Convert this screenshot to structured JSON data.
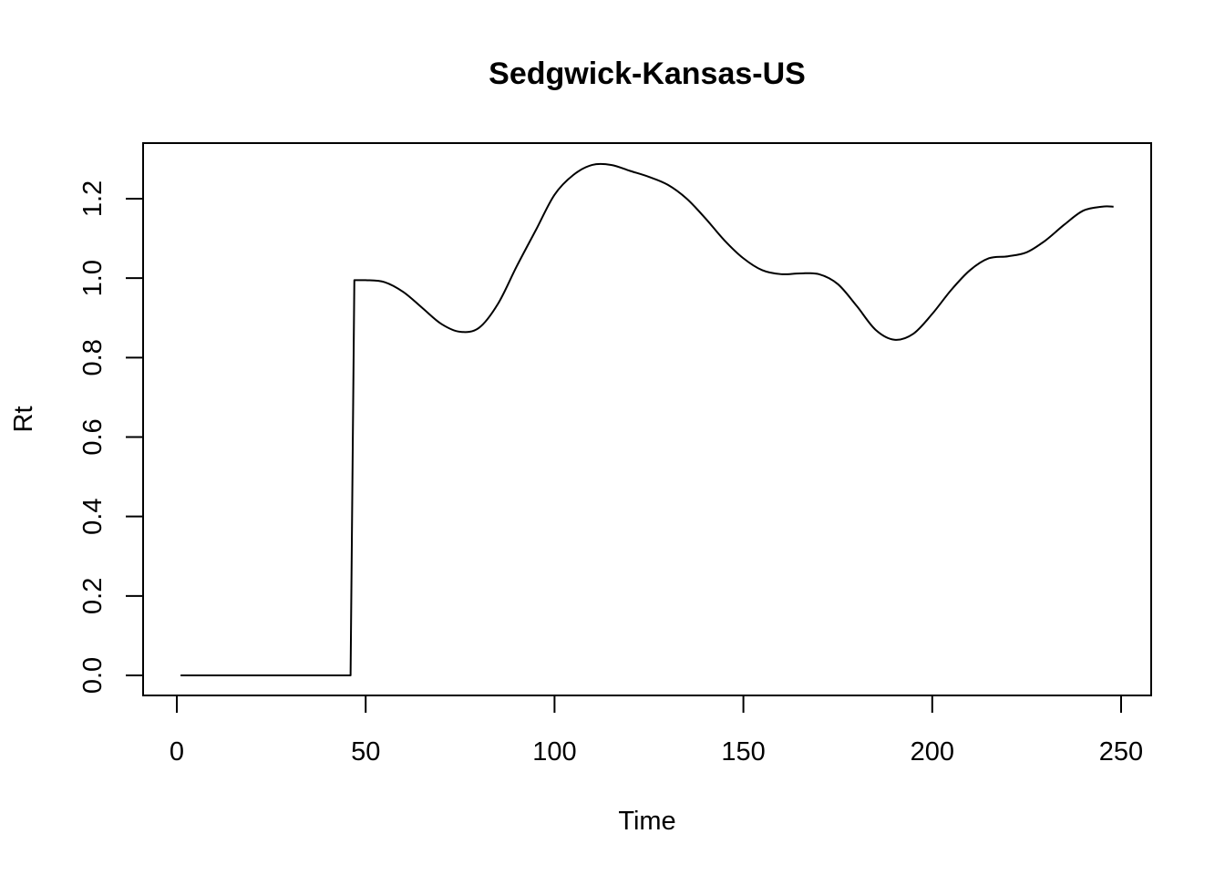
{
  "chart_data": {
    "type": "line",
    "title": "Sedgwick-Kansas-US",
    "xlabel": "Time",
    "ylabel": "Rt",
    "xlim": [
      0,
      250
    ],
    "ylim": [
      0,
      1.2
    ],
    "x_ticks": [
      "0",
      "50",
      "100",
      "150",
      "200",
      "250"
    ],
    "y_ticks": [
      "0.0",
      "0.2",
      "0.4",
      "0.6",
      "0.8",
      "1.0",
      "1.2"
    ],
    "grid": false,
    "legend": "none",
    "line_color": "#000000",
    "series": [
      {
        "x": [
          1,
          10,
          20,
          30,
          40,
          45,
          46,
          47,
          50,
          55,
          60,
          65,
          70,
          75,
          80,
          85,
          90,
          95,
          100,
          105,
          110,
          115,
          120,
          125,
          130,
          135,
          140,
          145,
          150,
          155,
          160,
          165,
          170,
          175,
          180,
          185,
          190,
          195,
          200,
          205,
          210,
          215,
          220,
          225,
          230,
          235,
          240,
          245,
          248
        ],
        "y": [
          0.0,
          0.0,
          0.0,
          0.0,
          0.0,
          0.0,
          0.0,
          0.995,
          0.995,
          0.99,
          0.965,
          0.925,
          0.885,
          0.865,
          0.875,
          0.935,
          1.03,
          1.12,
          1.21,
          1.26,
          1.285,
          1.285,
          1.27,
          1.255,
          1.235,
          1.2,
          1.15,
          1.095,
          1.05,
          1.02,
          1.01,
          1.012,
          1.01,
          0.985,
          0.93,
          0.87,
          0.845,
          0.86,
          0.91,
          0.97,
          1.02,
          1.05,
          1.055,
          1.065,
          1.095,
          1.135,
          1.17,
          1.18,
          1.18
        ]
      }
    ]
  }
}
